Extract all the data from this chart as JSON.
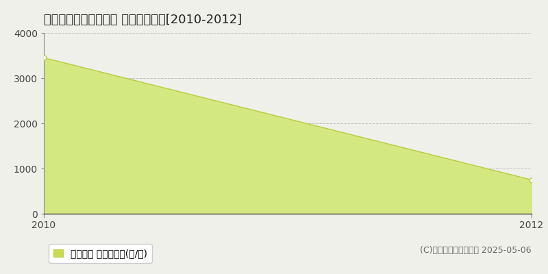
{
  "title": "秩父郡東秩父村大内沢 林地価格推移[2010-2012]",
  "x_values": [
    2010,
    2012
  ],
  "y_values": [
    3450,
    750
  ],
  "fill_color": "#d4e882",
  "line_color": "#b8cc40",
  "marker_color": "#cccc88",
  "ylim": [
    0,
    4000
  ],
  "xlim": [
    2010,
    2012
  ],
  "yticks": [
    0,
    1000,
    2000,
    3000,
    4000
  ],
  "xticks": [
    2010,
    2012
  ],
  "grid_color": "#aaaaaa",
  "grid_style": "--",
  "legend_label": "林地価格 平均坪単価(円/坪)",
  "legend_marker_color": "#c8dc50",
  "copyright_text": "(C)土地価格ドットコム 2025-05-06",
  "bg_color": "#f0f0eb",
  "plot_bg_color": "#f0f0eb",
  "title_fontsize": 13,
  "tick_fontsize": 10,
  "legend_fontsize": 10,
  "copyright_fontsize": 9
}
